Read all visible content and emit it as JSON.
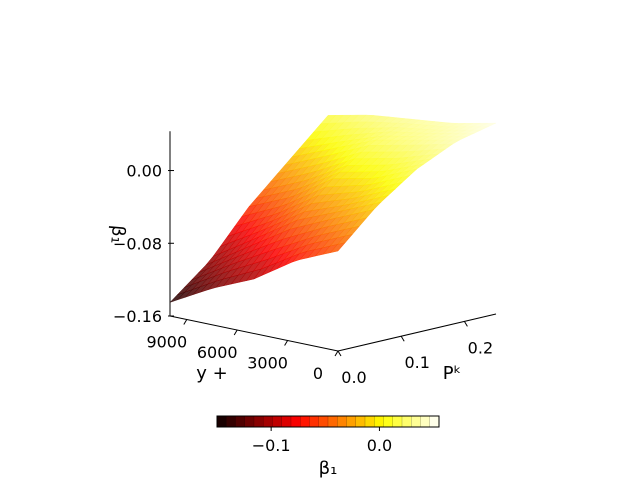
{
  "chart_data": {
    "type": "surface3d",
    "title": "",
    "x_axis": {
      "label": "Pᵏ",
      "ticks": [
        0.0,
        0.1,
        0.2
      ],
      "tick_labels": [
        "0.0",
        "0.1",
        "0.2"
      ],
      "range": [
        0.0,
        0.25
      ]
    },
    "y_axis": {
      "label": "y + ",
      "ticks": [
        0,
        3000,
        6000,
        9000
      ],
      "tick_labels": [
        "0",
        "3000",
        "6000",
        "9000"
      ],
      "range": [
        0,
        10000
      ]
    },
    "z_axis": {
      "label": "β₁",
      "ticks": [
        -0.16,
        -0.08,
        0.0
      ],
      "tick_labels": [
        "−0.16",
        "−0.08",
        "0.00"
      ],
      "range": [
        -0.16,
        0.06
      ]
    },
    "x": [
      0.0,
      0.0625,
      0.125,
      0.1875,
      0.25
    ],
    "y": [
      0,
      2500,
      5000,
      7500,
      10000
    ],
    "z": [
      [
        -0.05,
        -0.01,
        0.02,
        0.04,
        0.05
      ],
      [
        -0.07,
        -0.03,
        0.0,
        0.03,
        0.04
      ],
      [
        -0.1,
        -0.05,
        -0.01,
        0.02,
        0.035
      ],
      [
        -0.12,
        -0.08,
        -0.04,
        0.0,
        0.03
      ],
      [
        -0.145,
        -0.11,
        -0.06,
        -0.02,
        0.02
      ]
    ],
    "colormap": "hot",
    "colorbar": {
      "label": "β₁",
      "ticks": [
        -0.1,
        0.0
      ],
      "tick_labels": [
        "−0.1",
        "0.0"
      ],
      "range": [
        -0.15,
        0.055
      ],
      "placement": "bottom"
    },
    "view": "3d-perspective"
  }
}
